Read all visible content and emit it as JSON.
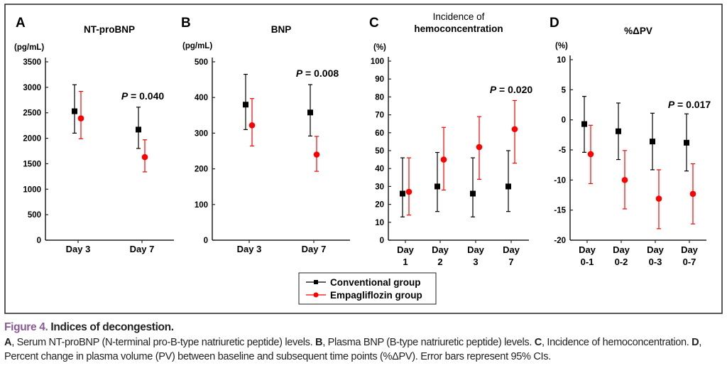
{
  "colors": {
    "conventional": "#000000",
    "empagliflozin": "#ff0000",
    "figure_label": "#8a5a98"
  },
  "legend": {
    "items": [
      {
        "label": "Conventional group",
        "marker": "square",
        "color": "#000000"
      },
      {
        "label": "Empagliflozin group",
        "marker": "circle",
        "color": "#ff0000"
      }
    ]
  },
  "chart_data": [
    {
      "panel": "A",
      "type": "scatter",
      "title": "NT-proBNP",
      "ylabel": "(pg/mL)",
      "ylim": [
        0,
        3500
      ],
      "yticks": [
        "0",
        "500",
        "1000",
        "1500",
        "2000",
        "2500",
        "3000",
        "3500"
      ],
      "categories": [
        [
          "Day 3"
        ],
        [
          "Day 7"
        ]
      ],
      "annotation": {
        "text": "P = 0.040",
        "category": 1
      },
      "series": [
        {
          "name": "Conventional group",
          "values": [
            2530,
            2170
          ],
          "ci_low": [
            2100,
            1800
          ],
          "ci_high": [
            3050,
            2610
          ]
        },
        {
          "name": "Empagliflozin group",
          "values": [
            2390,
            1630
          ],
          "ci_low": [
            1990,
            1340
          ],
          "ci_high": [
            2920,
            1970
          ]
        }
      ]
    },
    {
      "panel": "B",
      "type": "scatter",
      "title": "BNP",
      "ylabel": "(pg/mL)",
      "ylim": [
        0,
        500
      ],
      "yticks": [
        "0",
        "100",
        "200",
        "300",
        "400",
        "500"
      ],
      "categories": [
        [
          "Day 3"
        ],
        [
          "Day 7"
        ]
      ],
      "annotation": {
        "text": "P = 0.008",
        "category": 1
      },
      "series": [
        {
          "name": "Conventional group",
          "values": [
            380,
            358
          ],
          "ci_low": [
            310,
            292
          ],
          "ci_high": [
            465,
            436
          ]
        },
        {
          "name": "Empagliflozin group",
          "values": [
            322,
            240
          ],
          "ci_low": [
            264,
            193
          ],
          "ci_high": [
            397,
            291
          ]
        }
      ]
    },
    {
      "panel": "C",
      "type": "scatter",
      "title": [
        "Incidence of",
        "hemoconcentration"
      ],
      "ylabel": "(%)",
      "ylim": [
        0,
        100
      ],
      "yticks": [
        "0",
        "10",
        "20",
        "30",
        "40",
        "50",
        "60",
        "70",
        "80",
        "90",
        "100"
      ],
      "categories": [
        [
          "Day",
          "1"
        ],
        [
          "Day",
          "2"
        ],
        [
          "Day",
          "3"
        ],
        [
          "Day",
          "7"
        ]
      ],
      "annotation": {
        "text": "P = 0.020",
        "category": 3
      },
      "series": [
        {
          "name": "Conventional group",
          "values": [
            26,
            30,
            26,
            30
          ],
          "ci_low": [
            13,
            16,
            13,
            16
          ],
          "ci_high": [
            46,
            49,
            46,
            50
          ]
        },
        {
          "name": "Empagliflozin group",
          "values": [
            27,
            45,
            52,
            62
          ],
          "ci_low": [
            14,
            28,
            34,
            43
          ],
          "ci_high": [
            46,
            63,
            69,
            78
          ]
        }
      ]
    },
    {
      "panel": "D",
      "type": "scatter",
      "title": "%ΔPV",
      "ylabel": "(%)",
      "ylim": [
        -20,
        10
      ],
      "yticks": [
        "-20",
        "-15",
        "-10",
        "-5",
        "0",
        "5",
        "10"
      ],
      "categories": [
        [
          "Day",
          "0-1"
        ],
        [
          "Day",
          "0-2"
        ],
        [
          "Day",
          "0-3"
        ],
        [
          "Day",
          "0-7"
        ]
      ],
      "annotation": {
        "text": "P = 0.017",
        "category": 3
      },
      "series": [
        {
          "name": "Conventional group",
          "values": [
            -0.7,
            -1.9,
            -3.6,
            -3.8
          ],
          "ci_low": [
            -5.4,
            -6.6,
            -8.3,
            -8.5
          ],
          "ci_high": [
            3.9,
            2.8,
            1.1,
            1.0
          ]
        },
        {
          "name": "Empagliflozin group",
          "values": [
            -5.7,
            -10.0,
            -13.1,
            -12.3
          ],
          "ci_low": [
            -10.6,
            -14.8,
            -18.1,
            -17.3
          ],
          "ci_high": [
            -0.9,
            -5.1,
            -8.3,
            -7.3
          ]
        }
      ]
    }
  ],
  "caption": {
    "figure_number": "Figure 4.",
    "title": "Indices of decongestion.",
    "parts": [
      {
        "label": "A",
        "text": ", Serum NT-proBNP (N-terminal pro-B-type natriuretic peptide) levels. "
      },
      {
        "label": "B",
        "text": ", Plasma BNP (B-type natriuretic peptide) levels. "
      },
      {
        "label": "C",
        "text": ", Incidence of hemoconcentration. "
      },
      {
        "label": "D",
        "text": ", Percent change in plasma volume (PV) between baseline and subsequent time points (%ΔPV). Error bars represent 95% CIs."
      }
    ]
  }
}
